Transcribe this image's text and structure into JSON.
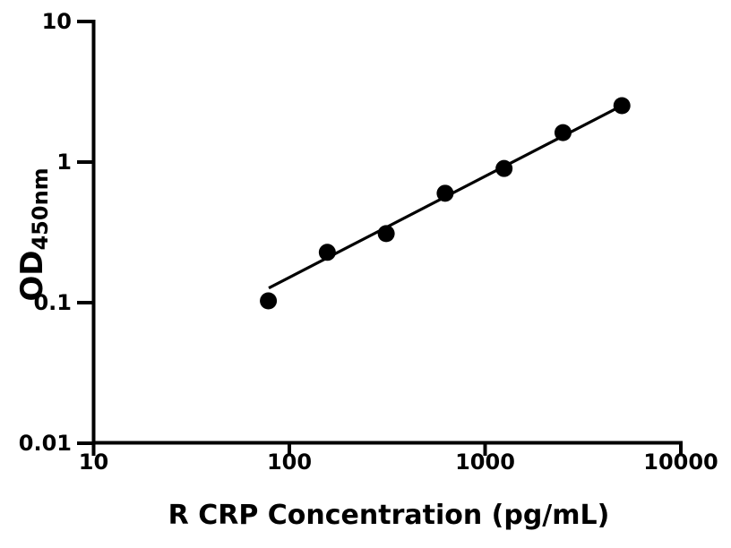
{
  "chart_data": {
    "type": "scatter",
    "xlabel": "R CRP Concentration (pg/mL)",
    "ylabel": "OD",
    "ylabel_subscript": "450nm",
    "x_scale": "log",
    "y_scale": "log",
    "xlim": [
      10,
      10000
    ],
    "ylim": [
      0.01,
      10
    ],
    "x_ticks": [
      {
        "value": 10,
        "label": "10"
      },
      {
        "value": 100,
        "label": "100"
      },
      {
        "value": 1000,
        "label": "1000"
      },
      {
        "value": 10000,
        "label": "10000"
      }
    ],
    "y_ticks": [
      {
        "value": 10,
        "label": "10"
      },
      {
        "value": 1,
        "label": "1"
      },
      {
        "value": 0.1,
        "label": "0.1"
      },
      {
        "value": 0.01,
        "label": "0.01"
      }
    ],
    "grid": false,
    "legend": false,
    "background_color": "#ffffff",
    "axis_color": "#000000",
    "marker": "filled-circle",
    "marker_color": "#000000",
    "line_color": "#000000",
    "points": [
      {
        "concentration_pg_ml": 78.125,
        "od": 0.103
      },
      {
        "concentration_pg_ml": 156.25,
        "od": 0.228
      },
      {
        "concentration_pg_ml": 312.5,
        "od": 0.31
      },
      {
        "concentration_pg_ml": 625,
        "od": 0.6
      },
      {
        "concentration_pg_ml": 1250,
        "od": 0.9
      },
      {
        "concentration_pg_ml": 2500,
        "od": 1.62
      },
      {
        "concentration_pg_ml": 5000,
        "od": 2.52
      }
    ],
    "fit_line": {
      "x_start": 78.5,
      "od_start": 0.127,
      "x_end": 5000,
      "od_end": 2.52
    }
  }
}
